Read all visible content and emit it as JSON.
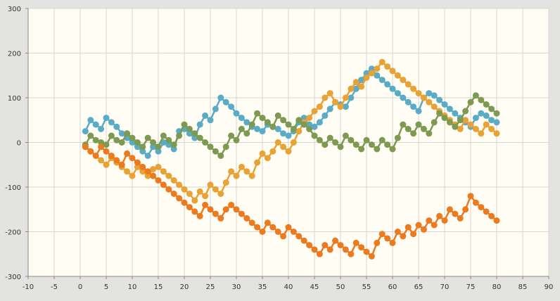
{
  "chart_data": {
    "type": "line",
    "title": "",
    "xlabel": "",
    "ylabel": "",
    "xlim": [
      -10,
      90
    ],
    "ylim": [
      -300,
      300
    ],
    "x_ticks": [
      -10,
      -5,
      0,
      5,
      10,
      15,
      20,
      25,
      30,
      35,
      40,
      45,
      50,
      55,
      60,
      65,
      70,
      75,
      80,
      85,
      90
    ],
    "y_ticks": [
      300,
      200,
      100,
      0,
      -100,
      -200,
      -300
    ],
    "grid": true,
    "legend": "none",
    "series": [
      {
        "color": "#5aacc6",
        "x": [
          1,
          2,
          3,
          4,
          5,
          6,
          7,
          8,
          9,
          10,
          11,
          12,
          13,
          14,
          15,
          16,
          17,
          18,
          19,
          20,
          21,
          22,
          23,
          24,
          25,
          26,
          27,
          28,
          29,
          30,
          31,
          32,
          33,
          34,
          35,
          36,
          37,
          38,
          39,
          40,
          41,
          42,
          43,
          44,
          45,
          46,
          47,
          48,
          49,
          50,
          51,
          52,
          53,
          54,
          55,
          56,
          57,
          58,
          59,
          60,
          61,
          62,
          63,
          64,
          65,
          66,
          67,
          68,
          69,
          70,
          71,
          72,
          73,
          74,
          75,
          76,
          77,
          78,
          79,
          80
        ],
        "y": [
          25,
          50,
          40,
          30,
          55,
          45,
          35,
          20,
          10,
          0,
          -10,
          -20,
          -30,
          -10,
          -20,
          0,
          -5,
          -15,
          25,
          30,
          20,
          10,
          40,
          60,
          50,
          75,
          100,
          90,
          80,
          65,
          55,
          45,
          35,
          30,
          25,
          40,
          35,
          30,
          20,
          15,
          25,
          45,
          55,
          40,
          35,
          45,
          60,
          75,
          90,
          85,
          80,
          100,
          120,
          140,
          155,
          165,
          150,
          140,
          130,
          120,
          110,
          100,
          90,
          80,
          70,
          100,
          110,
          105,
          95,
          85,
          75,
          65,
          55,
          45,
          35,
          55,
          65,
          60,
          50,
          45
        ]
      },
      {
        "color": "#e8a235",
        "x": [
          1,
          2,
          3,
          4,
          5,
          6,
          7,
          8,
          9,
          10,
          11,
          12,
          13,
          14,
          15,
          16,
          17,
          18,
          19,
          20,
          21,
          22,
          23,
          24,
          25,
          26,
          27,
          28,
          29,
          30,
          31,
          32,
          33,
          34,
          35,
          36,
          37,
          38,
          39,
          40,
          41,
          42,
          43,
          44,
          45,
          46,
          47,
          48,
          49,
          50,
          51,
          52,
          53,
          54,
          55,
          56,
          57,
          58,
          59,
          60,
          61,
          62,
          63,
          64,
          65,
          66,
          67,
          68,
          69,
          70,
          71,
          72,
          73,
          74,
          75,
          76,
          77,
          78,
          79,
          80
        ],
        "y": [
          -10,
          -20,
          -30,
          -40,
          -50,
          -35,
          -45,
          -55,
          -65,
          -75,
          -55,
          -65,
          -75,
          -60,
          -55,
          -65,
          -75,
          -85,
          -95,
          -105,
          -115,
          -130,
          -110,
          -120,
          -95,
          -105,
          -115,
          -90,
          -65,
          -75,
          -55,
          -65,
          -75,
          -45,
          -25,
          -35,
          -20,
          0,
          -10,
          -20,
          0,
          25,
          45,
          55,
          70,
          80,
          100,
          110,
          90,
          80,
          100,
          120,
          135,
          125,
          145,
          155,
          165,
          180,
          170,
          160,
          150,
          140,
          130,
          120,
          110,
          100,
          90,
          80,
          70,
          60,
          50,
          40,
          30,
          50,
          40,
          30,
          20,
          40,
          30,
          20
        ]
      },
      {
        "color": "#7e9a52",
        "x": [
          1,
          2,
          3,
          4,
          5,
          6,
          7,
          8,
          9,
          10,
          11,
          12,
          13,
          14,
          15,
          16,
          17,
          18,
          19,
          20,
          21,
          22,
          23,
          24,
          25,
          26,
          27,
          28,
          29,
          30,
          31,
          32,
          33,
          34,
          35,
          36,
          37,
          38,
          39,
          40,
          41,
          42,
          43,
          44,
          45,
          46,
          47,
          48,
          49,
          50,
          51,
          52,
          53,
          54,
          55,
          56,
          57,
          58,
          59,
          60,
          61,
          62,
          63,
          64,
          65,
          66,
          67,
          68,
          69,
          70,
          71,
          72,
          73,
          74,
          75,
          76,
          77,
          78,
          79,
          80
        ],
        "y": [
          -5,
          15,
          5,
          0,
          -5,
          15,
          5,
          0,
          20,
          10,
          0,
          -10,
          10,
          0,
          -10,
          15,
          5,
          -5,
          15,
          40,
          30,
          20,
          10,
          0,
          -10,
          -20,
          -30,
          -10,
          15,
          5,
          30,
          20,
          40,
          65,
          55,
          45,
          35,
          60,
          50,
          40,
          30,
          50,
          40,
          30,
          15,
          5,
          -5,
          10,
          0,
          -10,
          15,
          5,
          -5,
          -15,
          5,
          -5,
          -15,
          5,
          -5,
          -15,
          10,
          40,
          30,
          20,
          40,
          30,
          20,
          45,
          65,
          55,
          45,
          35,
          50,
          70,
          90,
          105,
          95,
          85,
          75,
          65
        ]
      },
      {
        "color": "#ec7a1e",
        "x": [
          1,
          2,
          3,
          4,
          5,
          6,
          7,
          8,
          9,
          10,
          11,
          12,
          13,
          14,
          15,
          16,
          17,
          18,
          19,
          20,
          21,
          22,
          23,
          24,
          25,
          26,
          27,
          28,
          29,
          30,
          31,
          32,
          33,
          34,
          35,
          36,
          37,
          38,
          39,
          40,
          41,
          42,
          43,
          44,
          45,
          46,
          47,
          48,
          49,
          50,
          51,
          52,
          53,
          54,
          55,
          56,
          57,
          58,
          59,
          60,
          61,
          62,
          63,
          64,
          65,
          66,
          67,
          68,
          69,
          70,
          71,
          72,
          73,
          74,
          75,
          76,
          77,
          78,
          79,
          80
        ],
        "y": [
          -10,
          -20,
          -30,
          -10,
          -20,
          -30,
          -40,
          -50,
          -25,
          -35,
          -45,
          -55,
          -65,
          -75,
          -85,
          -95,
          -105,
          -115,
          -125,
          -135,
          -145,
          -155,
          -165,
          -140,
          -150,
          -160,
          -170,
          -150,
          -140,
          -150,
          -160,
          -170,
          -180,
          -190,
          -200,
          -180,
          -190,
          -200,
          -210,
          -190,
          -200,
          -210,
          -220,
          -230,
          -240,
          -250,
          -230,
          -240,
          -220,
          -230,
          -240,
          -250,
          -225,
          -235,
          -245,
          -255,
          -225,
          -205,
          -215,
          -225,
          -200,
          -210,
          -190,
          -205,
          -185,
          -195,
          -175,
          -185,
          -165,
          -175,
          -150,
          -160,
          -170,
          -150,
          -120,
          -135,
          -145,
          -155,
          -165,
          -175
        ]
      }
    ]
  }
}
